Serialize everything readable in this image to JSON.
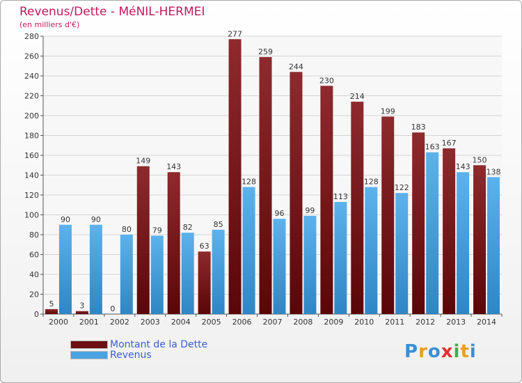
{
  "chart_data": {
    "type": "bar",
    "title": "Revenus/Dette - MéNIL-HERMEI",
    "subtitle": "(en milliers d'€)",
    "categories": [
      "2000",
      "2001",
      "2002",
      "2003",
      "2004",
      "2005",
      "2006",
      "2007",
      "2008",
      "2009",
      "2010",
      "2011",
      "2012",
      "2013",
      "2014"
    ],
    "series": [
      {
        "name": "Montant de la Dette",
        "color": "#7b1418",
        "values": [
          5,
          3,
          0,
          149,
          143,
          63,
          277,
          259,
          244,
          230,
          214,
          199,
          183,
          167,
          150
        ]
      },
      {
        "name": "Revenus",
        "color": "#4aa3e0",
        "values": [
          90,
          90,
          80,
          79,
          82,
          85,
          128,
          96,
          99,
          113,
          128,
          122,
          163,
          143,
          138
        ]
      }
    ],
    "ylim": [
      0,
      280
    ],
    "yticks": [
      0,
      20,
      40,
      60,
      80,
      100,
      120,
      140,
      160,
      180,
      200,
      220,
      240,
      260,
      280
    ],
    "grid": true,
    "legend_position": "bottom-left"
  },
  "logo": {
    "text": "Proxiti",
    "colors": [
      "#3a8fd6",
      "#e8a020",
      "#3a8fd6",
      "#e03030",
      "#40b040",
      "#e8a020",
      "#3a8fd6"
    ]
  }
}
